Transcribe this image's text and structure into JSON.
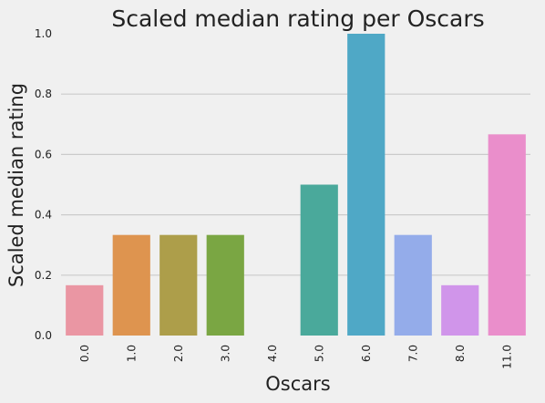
{
  "chart_data": {
    "type": "bar",
    "title": "Scaled median rating per Oscars",
    "xlabel": "Oscars",
    "ylabel": "Scaled median rating",
    "categories": [
      "0.0",
      "1.0",
      "2.0",
      "3.0",
      "4.0",
      "5.0",
      "6.0",
      "7.0",
      "8.0",
      "11.0"
    ],
    "values": [
      0.1667,
      0.3333,
      0.3333,
      0.3333,
      0.0,
      0.5,
      1.0,
      0.3333,
      0.1667,
      0.6667
    ],
    "colors": [
      "#ea96a3",
      "#de944f",
      "#ad9e4a",
      "#7aa643",
      "#5fae8c",
      "#4aa99b",
      "#4fa8c6",
      "#94acea",
      "#d095ea",
      "#ea8ecb"
    ],
    "ylim": [
      0,
      1.0
    ],
    "yticks": [
      "0.0",
      "0.2",
      "0.4",
      "0.6",
      "0.8",
      "1.0"
    ],
    "grid": true,
    "legend": "none"
  }
}
